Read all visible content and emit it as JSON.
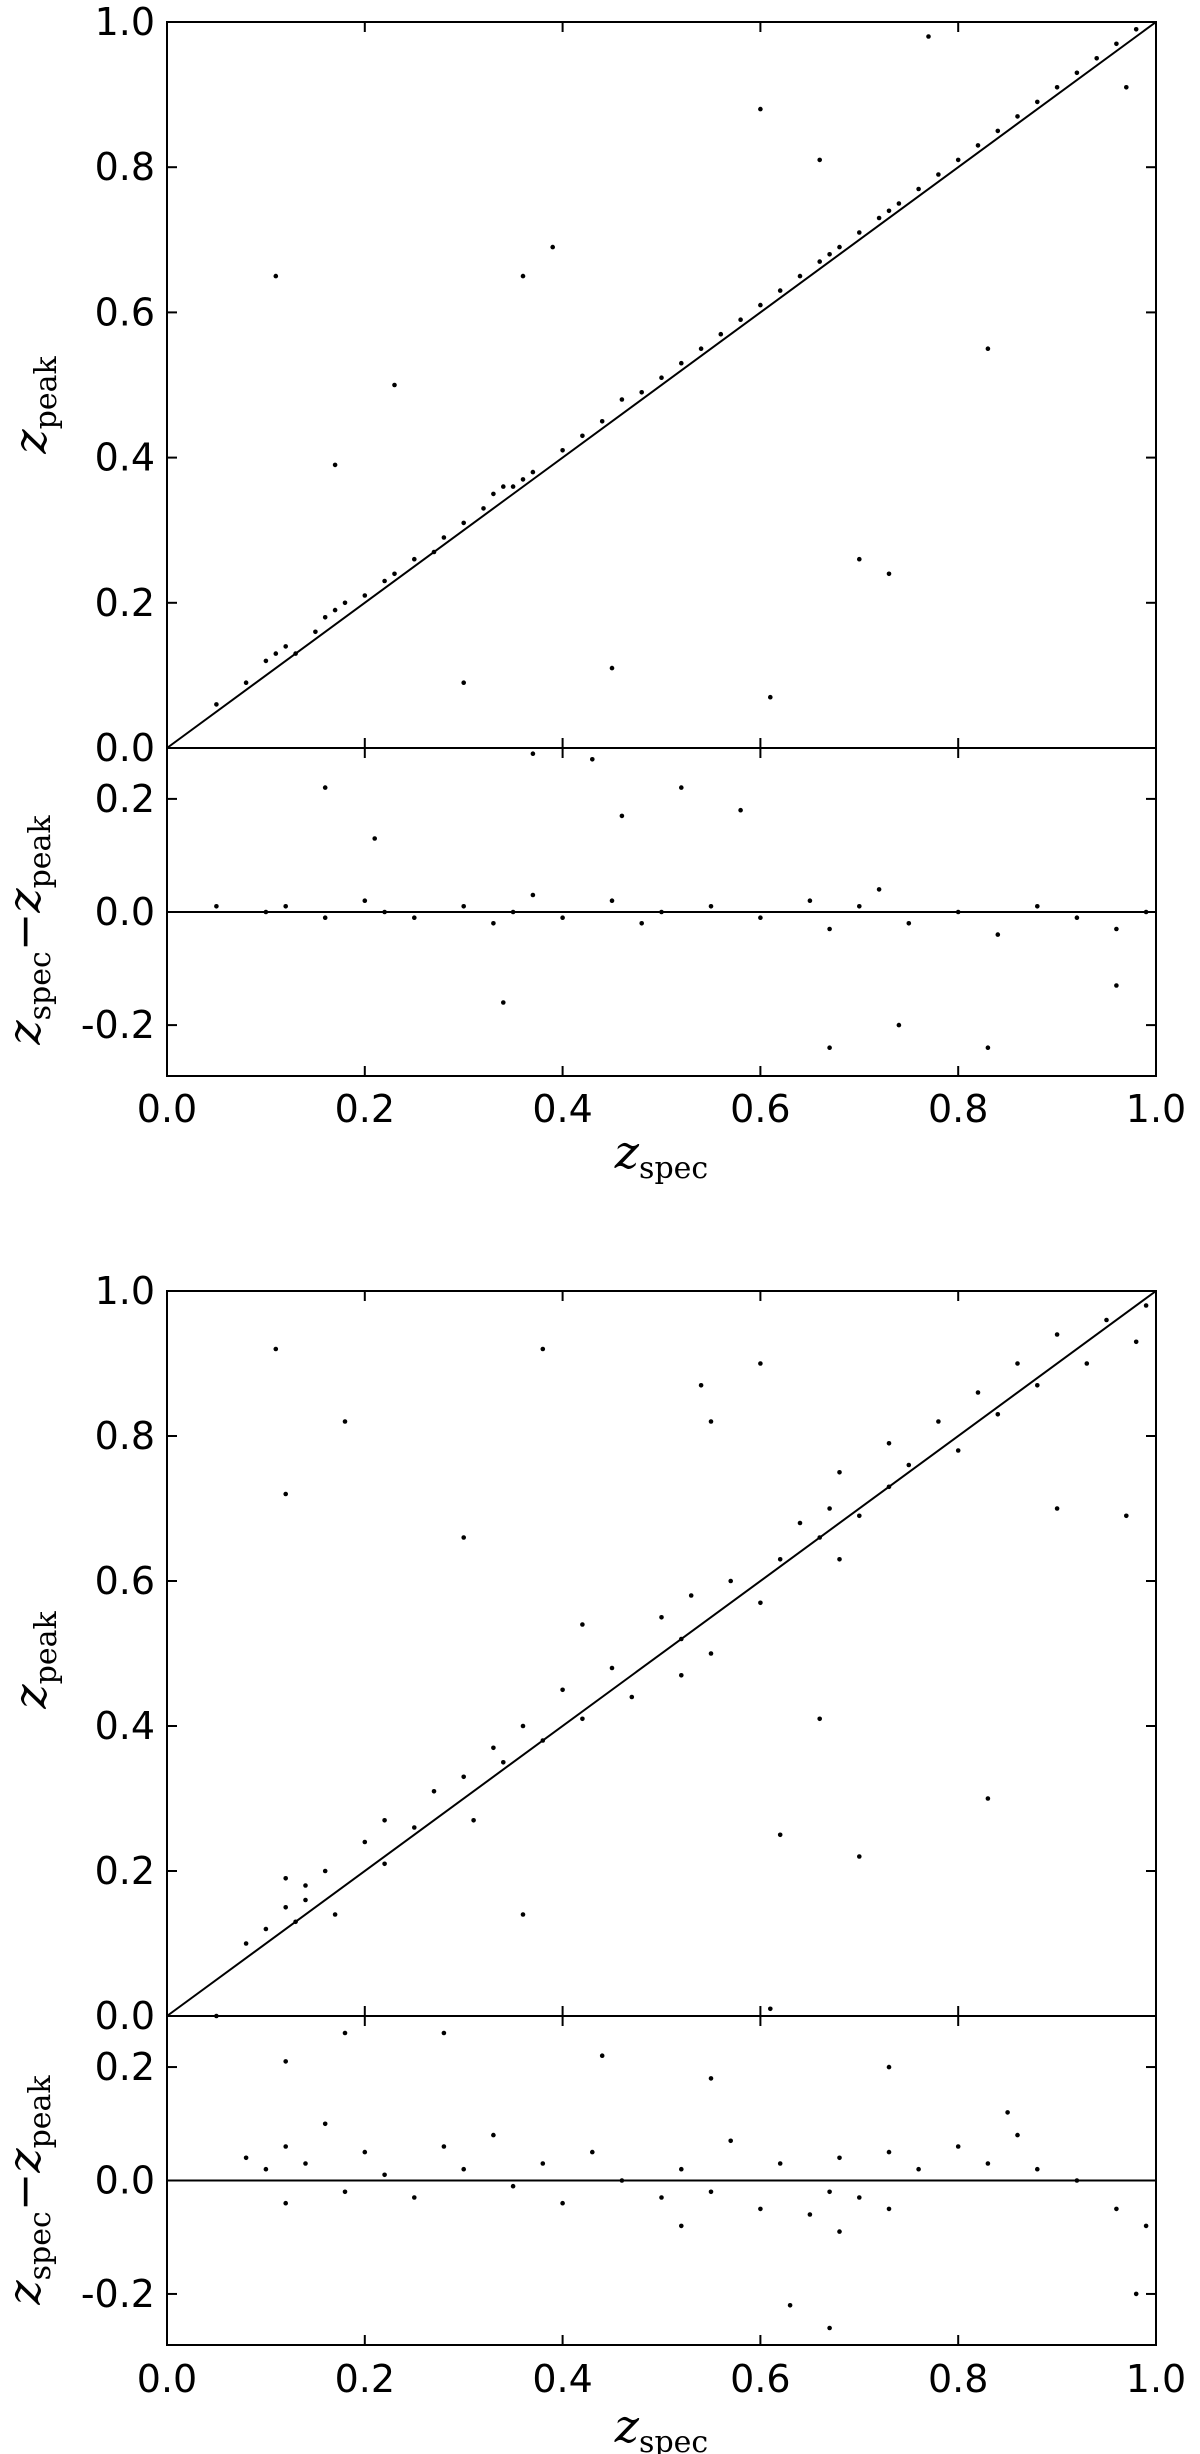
{
  "figure": {
    "panels": [
      {
        "id": "top",
        "main": {
          "xlim": [
            0.0,
            1.0
          ],
          "ylim": [
            0.0,
            1.0
          ],
          "yticks": [
            "0.0",
            "0.2",
            "0.4",
            "0.6",
            "0.8",
            "1.0"
          ],
          "ytick_values": [
            0.0,
            0.2,
            0.4,
            0.6,
            0.8,
            1.0
          ],
          "ylabel_main": "z",
          "ylabel_sub": "peak"
        },
        "residual": {
          "ylim": [
            -0.29,
            0.29
          ],
          "yticks": [
            "-0.2",
            "0.0",
            "0.2"
          ],
          "ytick_values": [
            -0.2,
            0.0,
            0.2
          ],
          "ylabel_main1": "z",
          "ylabel_sub1": "spec",
          "ylabel_mid": "−",
          "ylabel_main2": "z",
          "ylabel_sub2": "peak"
        },
        "xticks": [
          "0.0",
          "0.2",
          "0.4",
          "0.6",
          "0.8",
          "1.0"
        ],
        "xtick_values": [
          0.0,
          0.2,
          0.4,
          0.6,
          0.8,
          1.0
        ],
        "xlabel_main": "z",
        "xlabel_sub": "spec"
      },
      {
        "id": "bottom",
        "main": {
          "xlim": [
            0.0,
            1.0
          ],
          "ylim": [
            0.0,
            1.0
          ],
          "yticks": [
            "0.0",
            "0.2",
            "0.4",
            "0.6",
            "0.8",
            "1.0"
          ],
          "ytick_values": [
            0.0,
            0.2,
            0.4,
            0.6,
            0.8,
            1.0
          ],
          "ylabel_main": "z",
          "ylabel_sub": "peak"
        },
        "residual": {
          "ylim": [
            -0.29,
            0.29
          ],
          "yticks": [
            "-0.2",
            "0.0",
            "0.2"
          ],
          "ytick_values": [
            -0.2,
            0.0,
            0.2
          ],
          "ylabel_main1": "z",
          "ylabel_sub1": "spec",
          "ylabel_mid": "−",
          "ylabel_main2": "z",
          "ylabel_sub2": "peak"
        },
        "xticks": [
          "0.0",
          "0.2",
          "0.4",
          "0.6",
          "0.8",
          "1.0"
        ],
        "xtick_values": [
          0.0,
          0.2,
          0.4,
          0.6,
          0.8,
          1.0
        ],
        "xlabel_main": "z",
        "xlabel_sub": "spec"
      }
    ]
  },
  "chart_data": [
    {
      "type": "scatter",
      "xlabel": "z_spec",
      "ylabel": "z_peak",
      "xlim": [
        0.0,
        1.0
      ],
      "ylim": [
        0.0,
        1.0
      ],
      "reference_line": "y = x",
      "grid": false,
      "series": [
        {
          "points": [
            [
              0.1,
              0.12
            ],
            [
              0.11,
              0.13
            ],
            [
              0.12,
              0.14
            ],
            [
              0.13,
              0.13
            ],
            [
              0.16,
              0.18
            ],
            [
              0.17,
              0.19
            ],
            [
              0.18,
              0.2
            ],
            [
              0.2,
              0.21
            ],
            [
              0.22,
              0.23
            ],
            [
              0.23,
              0.24
            ],
            [
              0.25,
              0.26
            ],
            [
              0.28,
              0.29
            ],
            [
              0.3,
              0.31
            ],
            [
              0.32,
              0.33
            ],
            [
              0.33,
              0.35
            ],
            [
              0.34,
              0.36
            ],
            [
              0.35,
              0.36
            ],
            [
              0.36,
              0.37
            ],
            [
              0.37,
              0.38
            ],
            [
              0.4,
              0.41
            ],
            [
              0.42,
              0.43
            ],
            [
              0.44,
              0.45
            ],
            [
              0.46,
              0.48
            ],
            [
              0.48,
              0.49
            ],
            [
              0.5,
              0.51
            ],
            [
              0.52,
              0.53
            ],
            [
              0.54,
              0.55
            ],
            [
              0.56,
              0.57
            ],
            [
              0.58,
              0.59
            ],
            [
              0.6,
              0.61
            ],
            [
              0.62,
              0.63
            ],
            [
              0.64,
              0.65
            ],
            [
              0.66,
              0.67
            ],
            [
              0.67,
              0.68
            ],
            [
              0.68,
              0.69
            ],
            [
              0.7,
              0.71
            ],
            [
              0.72,
              0.73
            ],
            [
              0.73,
              0.74
            ],
            [
              0.74,
              0.75
            ],
            [
              0.76,
              0.77
            ],
            [
              0.78,
              0.79
            ],
            [
              0.8,
              0.81
            ],
            [
              0.82,
              0.83
            ],
            [
              0.84,
              0.85
            ],
            [
              0.86,
              0.87
            ],
            [
              0.88,
              0.89
            ],
            [
              0.9,
              0.91
            ],
            [
              0.92,
              0.93
            ],
            [
              0.94,
              0.95
            ],
            [
              0.96,
              0.97
            ],
            [
              0.98,
              0.99
            ],
            [
              0.11,
              0.65
            ],
            [
              0.17,
              0.39
            ],
            [
              0.23,
              0.5
            ],
            [
              0.3,
              0.09
            ],
            [
              0.45,
              0.11
            ],
            [
              0.39,
              0.69
            ],
            [
              0.61,
              0.07
            ],
            [
              0.73,
              0.24
            ],
            [
              0.83,
              0.55
            ],
            [
              0.77,
              0.98
            ],
            [
              0.97,
              0.91
            ],
            [
              0.6,
              0.88
            ],
            [
              0.36,
              0.65
            ],
            [
              0.66,
              0.81
            ],
            [
              0.7,
              0.26
            ],
            [
              0.05,
              0.06
            ],
            [
              0.08,
              0.09
            ],
            [
              0.15,
              0.16
            ],
            [
              0.27,
              0.27
            ]
          ]
        }
      ]
    },
    {
      "type": "scatter",
      "xlabel": "z_spec",
      "ylabel": "z_spec − z_peak",
      "xlim": [
        0.0,
        1.0
      ],
      "ylim": [
        -0.29,
        0.29
      ],
      "reference_line": "y = 0",
      "grid": false,
      "series": [
        {
          "points": [
            [
              0.05,
              0.01
            ],
            [
              0.1,
              0.0
            ],
            [
              0.12,
              0.01
            ],
            [
              0.16,
              -0.01
            ],
            [
              0.2,
              0.02
            ],
            [
              0.22,
              0.0
            ],
            [
              0.25,
              -0.01
            ],
            [
              0.3,
              0.01
            ],
            [
              0.33,
              -0.02
            ],
            [
              0.35,
              0.0
            ],
            [
              0.37,
              0.03
            ],
            [
              0.4,
              -0.01
            ],
            [
              0.45,
              0.02
            ],
            [
              0.48,
              -0.02
            ],
            [
              0.5,
              0.0
            ],
            [
              0.55,
              0.01
            ],
            [
              0.6,
              -0.01
            ],
            [
              0.65,
              0.02
            ],
            [
              0.67,
              -0.03
            ],
            [
              0.7,
              0.01
            ],
            [
              0.72,
              0.04
            ],
            [
              0.75,
              -0.02
            ],
            [
              0.8,
              0.0
            ],
            [
              0.84,
              -0.04
            ],
            [
              0.88,
              0.01
            ],
            [
              0.92,
              -0.01
            ],
            [
              0.96,
              -0.03
            ],
            [
              0.99,
              0.0
            ],
            [
              0.16,
              0.22
            ],
            [
              0.21,
              0.13
            ],
            [
              0.34,
              -0.16
            ],
            [
              0.46,
              0.17
            ],
            [
              0.58,
              0.18
            ],
            [
              0.67,
              -0.24
            ],
            [
              0.74,
              -0.2
            ],
            [
              0.83,
              -0.24
            ],
            [
              0.96,
              -0.13
            ],
            [
              0.37,
              0.28
            ],
            [
              0.43,
              0.27
            ],
            [
              0.52,
              0.22
            ]
          ]
        }
      ]
    },
    {
      "type": "scatter",
      "xlabel": "z_spec",
      "ylabel": "z_peak",
      "xlim": [
        0.0,
        1.0
      ],
      "ylim": [
        0.0,
        1.0
      ],
      "reference_line": "y = x",
      "grid": false,
      "series": [
        {
          "points": [
            [
              0.08,
              0.1
            ],
            [
              0.1,
              0.12
            ],
            [
              0.12,
              0.15
            ],
            [
              0.12,
              0.19
            ],
            [
              0.13,
              0.13
            ],
            [
              0.14,
              0.18
            ],
            [
              0.14,
              0.16
            ],
            [
              0.16,
              0.2
            ],
            [
              0.17,
              0.14
            ],
            [
              0.2,
              0.24
            ],
            [
              0.22,
              0.21
            ],
            [
              0.22,
              0.27
            ],
            [
              0.25,
              0.26
            ],
            [
              0.27,
              0.31
            ],
            [
              0.3,
              0.33
            ],
            [
              0.31,
              0.27
            ],
            [
              0.33,
              0.37
            ],
            [
              0.34,
              0.35
            ],
            [
              0.36,
              0.4
            ],
            [
              0.38,
              0.38
            ],
            [
              0.4,
              0.45
            ],
            [
              0.42,
              0.41
            ],
            [
              0.45,
              0.48
            ],
            [
              0.47,
              0.44
            ],
            [
              0.5,
              0.55
            ],
            [
              0.52,
              0.52
            ],
            [
              0.52,
              0.47
            ],
            [
              0.53,
              0.58
            ],
            [
              0.55,
              0.5
            ],
            [
              0.57,
              0.6
            ],
            [
              0.6,
              0.57
            ],
            [
              0.62,
              0.63
            ],
            [
              0.64,
              0.68
            ],
            [
              0.66,
              0.66
            ],
            [
              0.67,
              0.7
            ],
            [
              0.68,
              0.63
            ],
            [
              0.68,
              0.75
            ],
            [
              0.7,
              0.69
            ],
            [
              0.73,
              0.73
            ],
            [
              0.73,
              0.79
            ],
            [
              0.75,
              0.76
            ],
            [
              0.78,
              0.82
            ],
            [
              0.8,
              0.78
            ],
            [
              0.82,
              0.86
            ],
            [
              0.84,
              0.83
            ],
            [
              0.86,
              0.9
            ],
            [
              0.88,
              0.87
            ],
            [
              0.9,
              0.94
            ],
            [
              0.93,
              0.9
            ],
            [
              0.95,
              0.96
            ],
            [
              0.98,
              0.93
            ],
            [
              0.99,
              0.98
            ],
            [
              0.11,
              0.92
            ],
            [
              0.12,
              0.72
            ],
            [
              0.18,
              0.82
            ],
            [
              0.38,
              0.92
            ],
            [
              0.54,
              0.87
            ],
            [
              0.62,
              0.25
            ],
            [
              0.66,
              0.41
            ],
            [
              0.7,
              0.22
            ],
            [
              0.83,
              0.3
            ],
            [
              0.05,
              0.0
            ],
            [
              0.61,
              0.01
            ],
            [
              0.36,
              0.14
            ],
            [
              0.55,
              0.82
            ],
            [
              0.6,
              0.9
            ],
            [
              0.9,
              0.7
            ],
            [
              0.97,
              0.69
            ],
            [
              0.3,
              0.66
            ],
            [
              0.42,
              0.54
            ]
          ]
        }
      ]
    },
    {
      "type": "scatter",
      "xlabel": "z_spec",
      "ylabel": "z_spec − z_peak",
      "xlim": [
        0.0,
        1.0
      ],
      "ylim": [
        -0.29,
        0.29
      ],
      "reference_line": "y = 0",
      "grid": false,
      "series": [
        {
          "points": [
            [
              0.08,
              0.04
            ],
            [
              0.1,
              0.02
            ],
            [
              0.12,
              0.06
            ],
            [
              0.12,
              -0.04
            ],
            [
              0.14,
              0.03
            ],
            [
              0.16,
              0.1
            ],
            [
              0.18,
              -0.02
            ],
            [
              0.2,
              0.05
            ],
            [
              0.22,
              0.01
            ],
            [
              0.25,
              -0.03
            ],
            [
              0.28,
              0.06
            ],
            [
              0.3,
              0.02
            ],
            [
              0.33,
              0.08
            ],
            [
              0.35,
              -0.01
            ],
            [
              0.38,
              0.03
            ],
            [
              0.4,
              -0.04
            ],
            [
              0.43,
              0.05
            ],
            [
              0.46,
              0.0
            ],
            [
              0.5,
              -0.03
            ],
            [
              0.52,
              0.02
            ],
            [
              0.52,
              -0.08
            ],
            [
              0.55,
              -0.02
            ],
            [
              0.57,
              0.07
            ],
            [
              0.6,
              -0.05
            ],
            [
              0.62,
              0.03
            ],
            [
              0.65,
              -0.06
            ],
            [
              0.67,
              -0.02
            ],
            [
              0.68,
              -0.09
            ],
            [
              0.68,
              0.04
            ],
            [
              0.7,
              -0.03
            ],
            [
              0.73,
              0.05
            ],
            [
              0.73,
              -0.05
            ],
            [
              0.76,
              0.02
            ],
            [
              0.8,
              0.06
            ],
            [
              0.83,
              0.03
            ],
            [
              0.86,
              0.08
            ],
            [
              0.88,
              0.02
            ],
            [
              0.92,
              0.0
            ],
            [
              0.96,
              -0.05
            ],
            [
              0.99,
              -0.08
            ],
            [
              0.12,
              0.21
            ],
            [
              0.18,
              0.26
            ],
            [
              0.28,
              0.26
            ],
            [
              0.44,
              0.22
            ],
            [
              0.55,
              0.18
            ],
            [
              0.63,
              -0.22
            ],
            [
              0.67,
              -0.26
            ],
            [
              0.73,
              0.2
            ],
            [
              0.85,
              0.12
            ],
            [
              0.98,
              -0.2
            ]
          ]
        }
      ]
    }
  ]
}
